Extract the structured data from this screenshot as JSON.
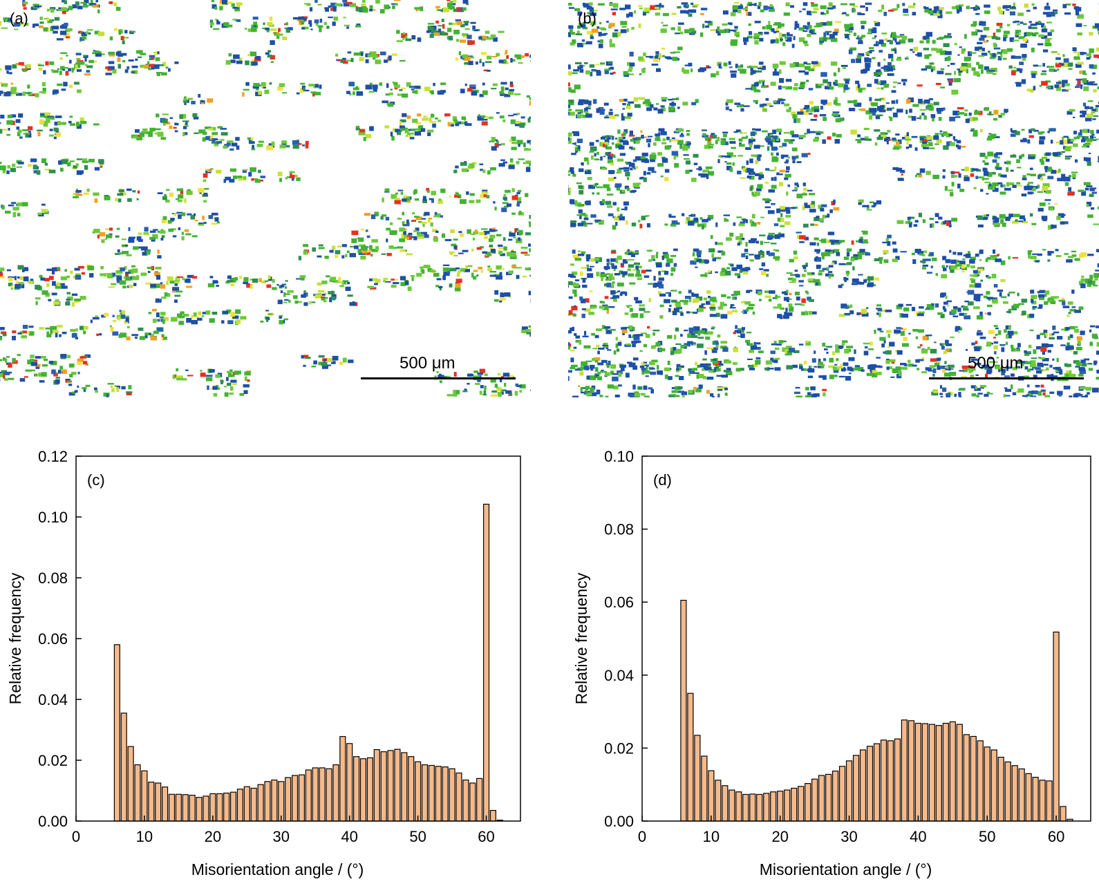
{
  "panels": {
    "a": {
      "label": "(a)",
      "scale_label": "500 μm"
    },
    "b": {
      "label": "(b)",
      "scale_label": "500 μm"
    }
  },
  "map_colors": [
    "#1e4fa8",
    "#2a5fb0",
    "#43b233",
    "#6cc93a",
    "#2f8f4e",
    "#c8e03a",
    "#f0e040",
    "#f0a020",
    "#e83020"
  ],
  "bar_color": "#f5b98a",
  "chart_data": [
    {
      "type": "bar",
      "panel_label": "(c)",
      "xlabel": "Misorientation angle / (°)",
      "ylabel": "Relative frequency",
      "xlim": [
        0,
        65
      ],
      "ylim": [
        0,
        0.12
      ],
      "xticks": [
        0,
        10,
        20,
        30,
        40,
        50,
        60
      ],
      "yticks": [
        "0.00",
        "0.02",
        "0.04",
        "0.06",
        "0.08",
        "0.10",
        "0.12"
      ],
      "x": [
        6,
        7,
        8,
        9,
        10,
        11,
        12,
        13,
        14,
        15,
        16,
        17,
        18,
        19,
        20,
        21,
        22,
        23,
        24,
        25,
        26,
        27,
        28,
        29,
        30,
        31,
        32,
        33,
        34,
        35,
        36,
        37,
        38,
        39,
        40,
        41,
        42,
        43,
        44,
        45,
        46,
        47,
        48,
        49,
        50,
        51,
        52,
        53,
        54,
        55,
        56,
        57,
        58,
        59,
        60,
        61,
        62
      ],
      "values": [
        0.058,
        0.0355,
        0.0245,
        0.0185,
        0.0165,
        0.0128,
        0.0125,
        0.0112,
        0.0088,
        0.0088,
        0.0087,
        0.0085,
        0.0078,
        0.0082,
        0.009,
        0.009,
        0.0092,
        0.0095,
        0.0105,
        0.0113,
        0.0108,
        0.012,
        0.013,
        0.0135,
        0.013,
        0.0143,
        0.015,
        0.0152,
        0.0168,
        0.0175,
        0.0175,
        0.0172,
        0.0185,
        0.0278,
        0.0255,
        0.0212,
        0.0205,
        0.0208,
        0.0235,
        0.0228,
        0.0232,
        0.0236,
        0.0225,
        0.0212,
        0.0195,
        0.0185,
        0.0183,
        0.018,
        0.0178,
        0.0172,
        0.0158,
        0.0135,
        0.0125,
        0.014,
        0.1042,
        0.0035,
        0.0003
      ]
    },
    {
      "type": "bar",
      "panel_label": "(d)",
      "xlabel": "Misorientation angle / (°)",
      "ylabel": "Relative frequency",
      "xlim": [
        0,
        65
      ],
      "ylim": [
        0,
        0.1
      ],
      "xticks": [
        0,
        10,
        20,
        30,
        40,
        50,
        60
      ],
      "yticks": [
        "0.00",
        "0.02",
        "0.04",
        "0.06",
        "0.08",
        "0.10"
      ],
      "x": [
        6,
        7,
        8,
        9,
        10,
        11,
        12,
        13,
        14,
        15,
        16,
        17,
        18,
        19,
        20,
        21,
        22,
        23,
        24,
        25,
        26,
        27,
        28,
        29,
        30,
        31,
        32,
        33,
        34,
        35,
        36,
        37,
        38,
        39,
        40,
        41,
        42,
        43,
        44,
        45,
        46,
        47,
        48,
        49,
        50,
        51,
        52,
        53,
        54,
        55,
        56,
        57,
        58,
        59,
        60,
        61,
        62
      ],
      "values": [
        0.0605,
        0.035,
        0.0235,
        0.0178,
        0.0138,
        0.0112,
        0.0097,
        0.0085,
        0.008,
        0.0073,
        0.0074,
        0.0073,
        0.0076,
        0.008,
        0.0082,
        0.0085,
        0.009,
        0.0095,
        0.0103,
        0.0115,
        0.0125,
        0.0128,
        0.0137,
        0.015,
        0.0165,
        0.018,
        0.0195,
        0.0205,
        0.0212,
        0.0222,
        0.022,
        0.0225,
        0.0277,
        0.0275,
        0.0268,
        0.0267,
        0.0265,
        0.0262,
        0.0268,
        0.0272,
        0.0265,
        0.0237,
        0.0232,
        0.022,
        0.0203,
        0.0195,
        0.0175,
        0.0162,
        0.0152,
        0.0143,
        0.013,
        0.012,
        0.0112,
        0.011,
        0.0518,
        0.004,
        0.0005
      ]
    }
  ]
}
